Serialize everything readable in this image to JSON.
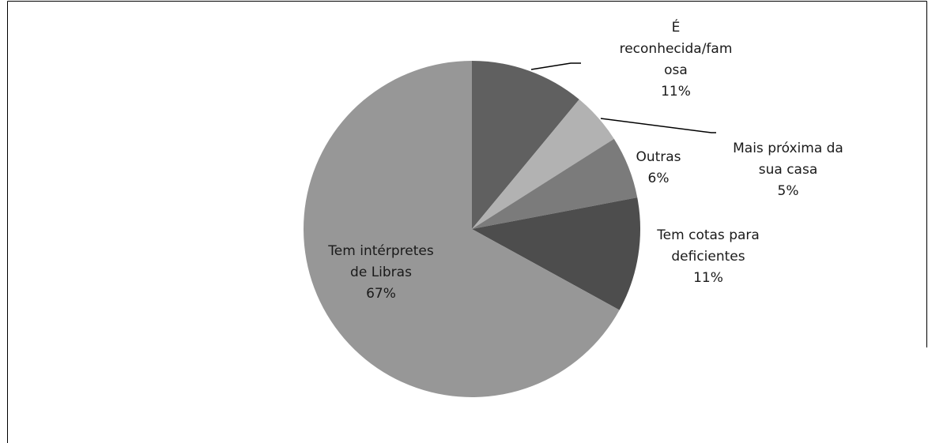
{
  "chart_data": {
    "type": "pie",
    "categories": [
      "É reconhecida/famosa",
      "Mais próxima da sua casa",
      "Outras",
      "Tem cotas para deficientes",
      "Tem intérpretes de Libras"
    ],
    "values": [
      11,
      5,
      6,
      11,
      67
    ],
    "value_labels": [
      "11%",
      "5%",
      "6%",
      "11%",
      "67%"
    ],
    "colors": [
      "#606060",
      "#b2b2b2",
      "#7b7b7b",
      "#4d4d4d",
      "#979797"
    ]
  }
}
